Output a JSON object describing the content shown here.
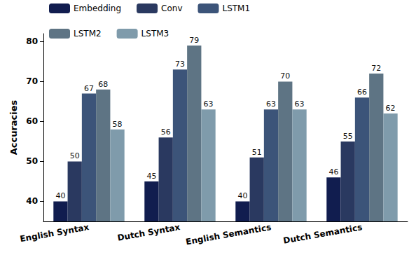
{
  "chart_data": {
    "type": "bar",
    "categories": [
      "English Syntax",
      "Dutch Syntax",
      "English Semantics",
      "Dutch Semantics"
    ],
    "series": [
      {
        "name": "Embedding",
        "color": "#111d4f",
        "values": [
          40,
          45,
          40,
          46
        ]
      },
      {
        "name": "Conv",
        "color": "#2a3960",
        "values": [
          50,
          56,
          51,
          55
        ]
      },
      {
        "name": "LSTM1",
        "color": "#3c5479",
        "values": [
          67,
          73,
          63,
          66
        ]
      },
      {
        "name": "LSTM2",
        "color": "#5e7484",
        "values": [
          68,
          79,
          70,
          72
        ]
      },
      {
        "name": "LSTM3",
        "color": "#7f9bab",
        "values": [
          58,
          63,
          63,
          62
        ]
      }
    ],
    "y_label": "Accuracies",
    "ylim": [
      35,
      82
    ],
    "yticks": [
      40,
      50,
      60,
      70,
      80
    ],
    "grid": false,
    "legend": "top",
    "data_labels": true
  }
}
